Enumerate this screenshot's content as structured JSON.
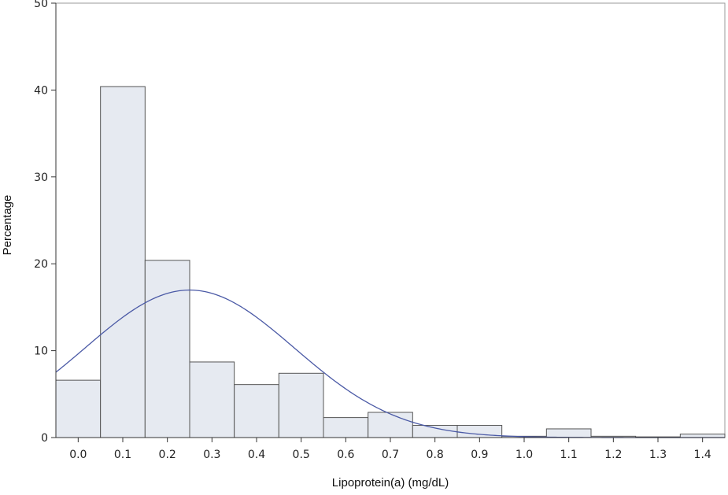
{
  "chart_data": {
    "type": "bar",
    "title": "",
    "xlabel": "Lipoprotein(a) (mg/dL)",
    "ylabel": "Percentage",
    "xlim": [
      -0.05,
      1.45
    ],
    "ylim": [
      0,
      50
    ],
    "bin_width": 0.1,
    "x_ticks": [
      "0.0",
      "0.1",
      "0.2",
      "0.3",
      "0.4",
      "0.5",
      "0.6",
      "0.7",
      "0.8",
      "0.9",
      "1.0",
      "1.1",
      "1.2",
      "1.3",
      "1.4"
    ],
    "y_ticks": [
      "0",
      "10",
      "20",
      "30",
      "40",
      "50"
    ],
    "categories": [
      "0.0",
      "0.1",
      "0.2",
      "0.3",
      "0.4",
      "0.5",
      "0.6",
      "0.7",
      "0.8",
      "0.9",
      "1.0",
      "1.1",
      "1.2",
      "1.3",
      "1.4"
    ],
    "values": [
      6.6,
      40.4,
      20.4,
      8.7,
      6.1,
      7.4,
      2.3,
      2.9,
      1.4,
      1.4,
      0.15,
      1.0,
      0.15,
      0.08,
      0.4
    ],
    "normal_curve": {
      "mean": 0.25,
      "sd": 0.235
    },
    "grid": false,
    "colors": {
      "bar_fill": "#e6eaf1",
      "bar_stroke": "#555555",
      "curve": "#4b5aa6",
      "axis": "#333333"
    }
  }
}
